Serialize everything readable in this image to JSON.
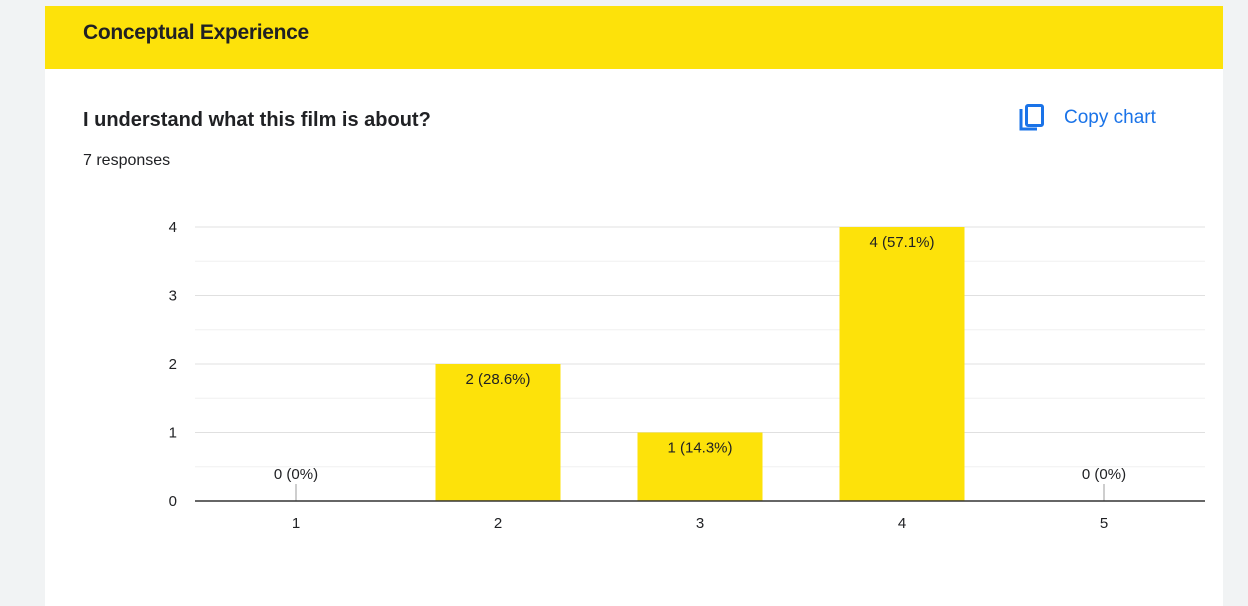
{
  "section": {
    "title": "Conceptual Experience"
  },
  "question": {
    "title": "I understand what this film is about?",
    "responses": "7 responses"
  },
  "toolbar": {
    "copy_label": "Copy chart",
    "copy_icon": "copy-icon"
  },
  "colors": {
    "bar": "#fde20a",
    "accent": "#1a73e8",
    "header": "#fde20a"
  },
  "chart_data": {
    "type": "bar",
    "categories": [
      "1",
      "2",
      "3",
      "4",
      "5"
    ],
    "values": [
      0,
      2,
      1,
      4,
      0
    ],
    "data_labels": [
      "0 (0%)",
      "2 (28.6%)",
      "1 (14.3%)",
      "4 (57.1%)",
      "0 (0%)"
    ],
    "yticks": [
      0,
      1,
      2,
      3,
      4
    ],
    "ylim": [
      0,
      4
    ],
    "grid": true,
    "title": "",
    "xlabel": "",
    "ylabel": ""
  }
}
